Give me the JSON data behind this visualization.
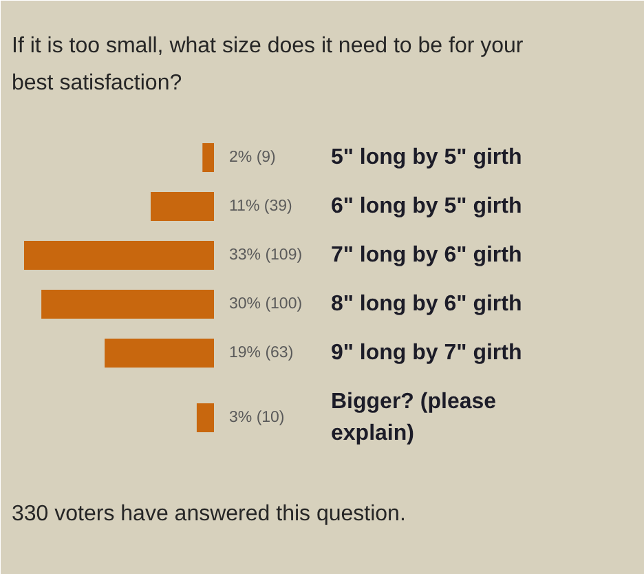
{
  "chart_data": {
    "type": "bar",
    "orientation": "horizontal",
    "title": "If it is too small, what size does it need to be for your best satisfaction?",
    "categories": [
      "5\" long by 5\" girth",
      "6\" long by 5\" girth",
      "7\" long by 6\" girth",
      "8\" long by 6\" girth",
      "9\" long by 7\" girth",
      "Bigger? (please explain)"
    ],
    "values": [
      2,
      11,
      33,
      30,
      19,
      3
    ],
    "color": "#c8670e",
    "value_labels": [
      "2% (9)",
      "11% (39)",
      "33% (109)",
      "30% (100)",
      "19% (63)",
      "3% (10)"
    ],
    "annotations": [
      "330 voters have answered this question."
    ]
  }
}
